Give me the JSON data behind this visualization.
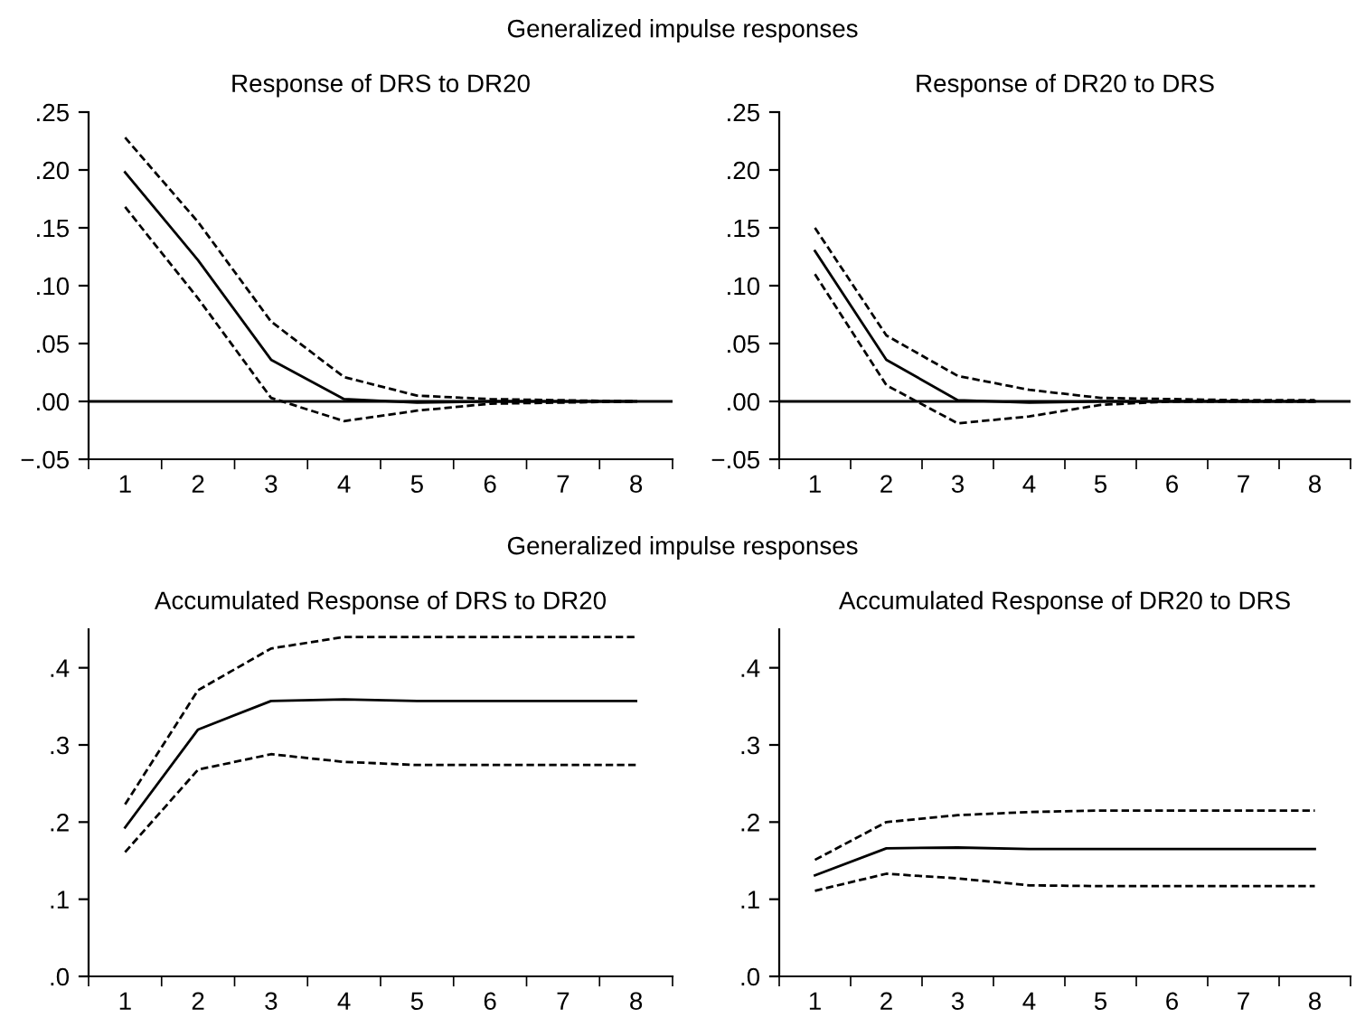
{
  "chart_data": [
    {
      "type": "line",
      "title": "Response of DRS to DR20",
      "annotations": [
        "Generalized impulse responses"
      ],
      "categories": [
        "1",
        "2",
        "3",
        "4",
        "5",
        "6",
        "7",
        "8"
      ],
      "series": [
        {
          "color": "#000000",
          "line_style": "solid",
          "values": [
            0.198,
            0.122,
            0.036,
            0.002,
            -0.001,
            0,
            0,
            0
          ]
        },
        {
          "color": "#000000",
          "line_style": "dashed",
          "values": [
            0.228,
            0.155,
            0.069,
            0.021,
            0.005,
            0.002,
            0.001,
            0
          ]
        },
        {
          "color": "#000000",
          "line_style": "dashed",
          "values": [
            0.168,
            0.089,
            0.003,
            -0.017,
            -0.008,
            -0.002,
            -0.001,
            0
          ]
        }
      ],
      "ylim": [
        -0.05,
        0.25
      ],
      "yticks": [
        {
          "value": -0.05,
          "label": "−.05"
        },
        {
          "value": 0,
          "label": ".00"
        },
        {
          "value": 0.05,
          "label": ".05"
        },
        {
          "value": 0.1,
          "label": ".10"
        },
        {
          "value": 0.15,
          "label": ".15"
        },
        {
          "value": 0.2,
          "label": ".20"
        },
        {
          "value": 0.25,
          "label": ".25"
        }
      ],
      "ref_lines": [
        {
          "axis": "y",
          "value": 0,
          "color": "#000000"
        }
      ]
    },
    {
      "type": "line",
      "title": "Response of DR20 to DRS",
      "categories": [
        "1",
        "2",
        "3",
        "4",
        "5",
        "6",
        "7",
        "8"
      ],
      "series": [
        {
          "color": "#000000",
          "line_style": "solid",
          "values": [
            0.13,
            0.036,
            0.001,
            -0.001,
            0,
            0,
            0,
            0
          ]
        },
        {
          "color": "#000000",
          "line_style": "dashed",
          "values": [
            0.15,
            0.057,
            0.022,
            0.01,
            0.003,
            0.002,
            0.001,
            0.001
          ]
        },
        {
          "color": "#000000",
          "line_style": "dashed",
          "values": [
            0.11,
            0.014,
            -0.019,
            -0.013,
            -0.003,
            0,
            0,
            0
          ]
        }
      ],
      "ylim": [
        -0.05,
        0.25
      ],
      "yticks": [
        {
          "value": -0.05,
          "label": "−.05"
        },
        {
          "value": 0,
          "label": ".00"
        },
        {
          "value": 0.05,
          "label": ".05"
        },
        {
          "value": 0.1,
          "label": ".10"
        },
        {
          "value": 0.15,
          "label": ".15"
        },
        {
          "value": 0.2,
          "label": ".20"
        },
        {
          "value": 0.25,
          "label": ".25"
        }
      ],
      "ref_lines": [
        {
          "axis": "y",
          "value": 0,
          "color": "#000000"
        }
      ]
    },
    {
      "type": "line",
      "title": "Accumulated Response of DRS to DR20",
      "annotations": [
        "Generalized impulse responses"
      ],
      "categories": [
        "1",
        "2",
        "3",
        "4",
        "5",
        "6",
        "7",
        "8"
      ],
      "series": [
        {
          "color": "#000000",
          "line_style": "solid",
          "values": [
            0.193,
            0.32,
            0.357,
            0.359,
            0.357,
            0.357,
            0.357,
            0.357
          ]
        },
        {
          "color": "#000000",
          "line_style": "dashed",
          "values": [
            0.223,
            0.371,
            0.425,
            0.44,
            0.44,
            0.44,
            0.44,
            0.44
          ]
        },
        {
          "color": "#000000",
          "line_style": "dashed",
          "values": [
            0.161,
            0.268,
            0.288,
            0.278,
            0.274,
            0.274,
            0.274,
            0.274
          ]
        }
      ],
      "ylim": [
        0,
        0.45
      ],
      "yticks": [
        {
          "value": 0,
          "label": ".0"
        },
        {
          "value": 0.1,
          "label": ".1"
        },
        {
          "value": 0.2,
          "label": ".2"
        },
        {
          "value": 0.3,
          "label": ".3"
        },
        {
          "value": 0.4,
          "label": ".4"
        }
      ]
    },
    {
      "type": "line",
      "title": "Accumulated Response of DR20 to DRS",
      "categories": [
        "1",
        "2",
        "3",
        "4",
        "5",
        "6",
        "7",
        "8"
      ],
      "series": [
        {
          "color": "#000000",
          "line_style": "solid",
          "values": [
            0.131,
            0.166,
            0.167,
            0.165,
            0.165,
            0.165,
            0.165,
            0.165
          ]
        },
        {
          "color": "#000000",
          "line_style": "dashed",
          "values": [
            0.151,
            0.2,
            0.209,
            0.213,
            0.215,
            0.215,
            0.215,
            0.215
          ]
        },
        {
          "color": "#000000",
          "line_style": "dashed",
          "values": [
            0.111,
            0.133,
            0.127,
            0.118,
            0.117,
            0.117,
            0.117,
            0.117
          ]
        }
      ],
      "ylim": [
        0,
        0.45
      ],
      "yticks": [
        {
          "value": 0,
          "label": ".0"
        },
        {
          "value": 0.1,
          "label": ".1"
        },
        {
          "value": 0.2,
          "label": ".2"
        },
        {
          "value": 0.3,
          "label": ".3"
        },
        {
          "value": 0.4,
          "label": ".4"
        }
      ]
    }
  ]
}
